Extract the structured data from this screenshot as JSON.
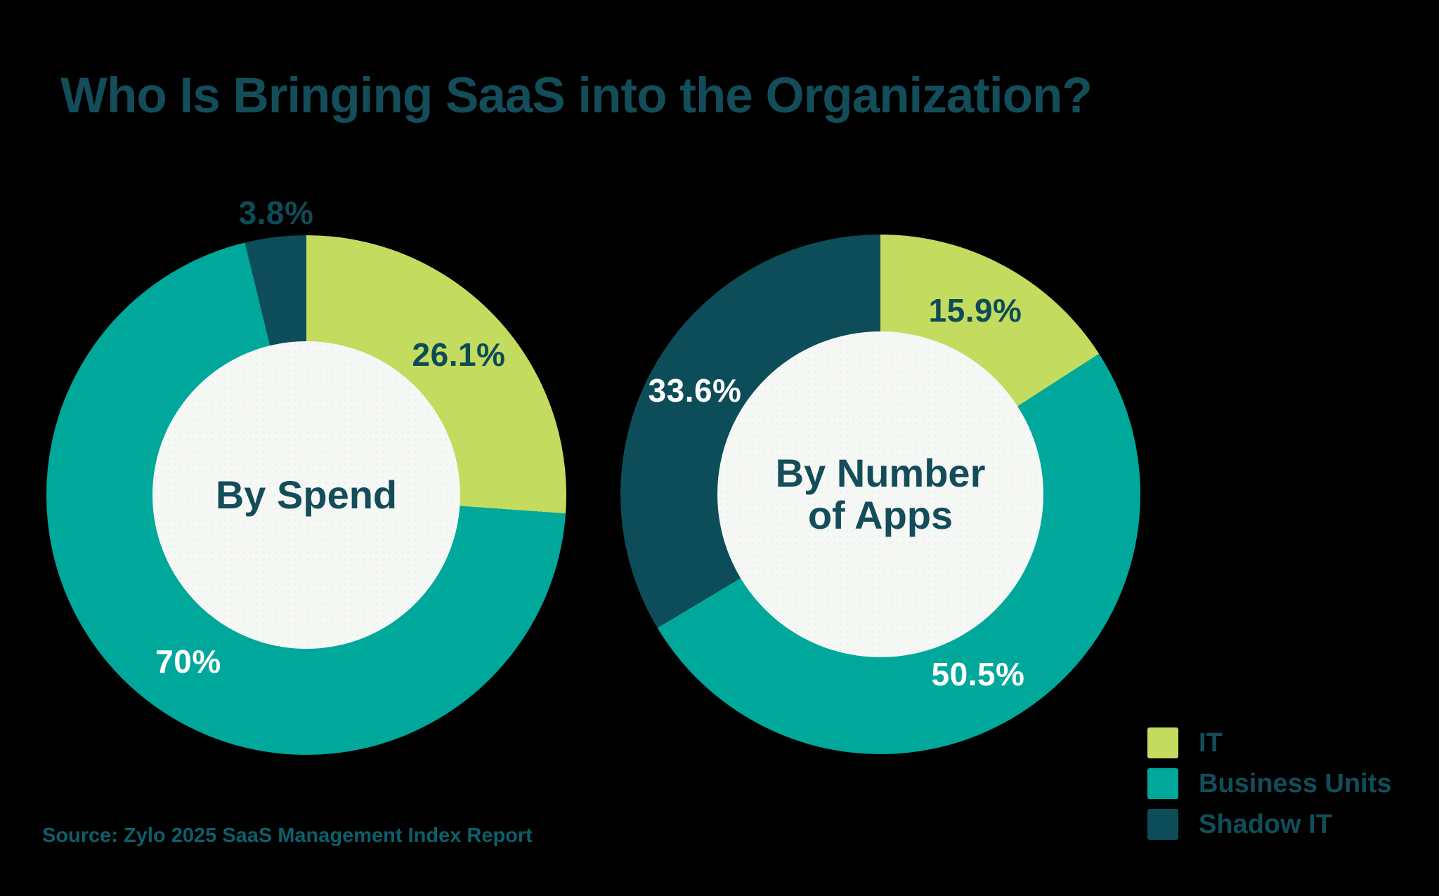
{
  "title": "Who Is Bringing SaaS into the Organization?",
  "source": "Source: Zylo 2025 SaaS Management Index Report",
  "colors": {
    "background": "#000000",
    "it_lime": "#c3db5e",
    "business_units_teal": "#00a89c",
    "shadow_it_dark_teal": "#0d4d59",
    "heading_text": "#134d5a",
    "percent_label_dark": "#0e4b57",
    "percent_label_light": "#ffffff",
    "source_text": "#0c5f6c",
    "donut_center_bg": "#f6f8f5",
    "donut_center_dot": "#e9ede6"
  },
  "legend": {
    "items": [
      {
        "label": "IT",
        "color": "#c3db5e"
      },
      {
        "label": "Business Units",
        "color": "#00a89c"
      },
      {
        "label": "Shadow IT",
        "color": "#0d4d59"
      }
    ]
  },
  "chart_data": [
    {
      "type": "pie",
      "subtype": "donut",
      "center_label": "By Spend",
      "categories": [
        "IT",
        "Business Units",
        "Shadow IT"
      ],
      "values": [
        26.1,
        70,
        3.8
      ],
      "labels": [
        "26.1%",
        "70%",
        "3.8%"
      ],
      "colors": [
        "#c3db5e",
        "#00a89c",
        "#0d4d59"
      ],
      "start_angle_deg": 0,
      "direction": "clockwise",
      "legend_position": "bottom-right"
    },
    {
      "type": "pie",
      "subtype": "donut",
      "center_label": "By Number\nof Apps",
      "categories": [
        "IT",
        "Business Units",
        "Shadow IT"
      ],
      "values": [
        15.9,
        50.5,
        33.6
      ],
      "labels": [
        "15.9%",
        "50.5%",
        "33.6%"
      ],
      "colors": [
        "#c3db5e",
        "#00a89c",
        "#0d4d59"
      ],
      "start_angle_deg": 0,
      "direction": "clockwise",
      "legend_position": "bottom-right"
    }
  ]
}
